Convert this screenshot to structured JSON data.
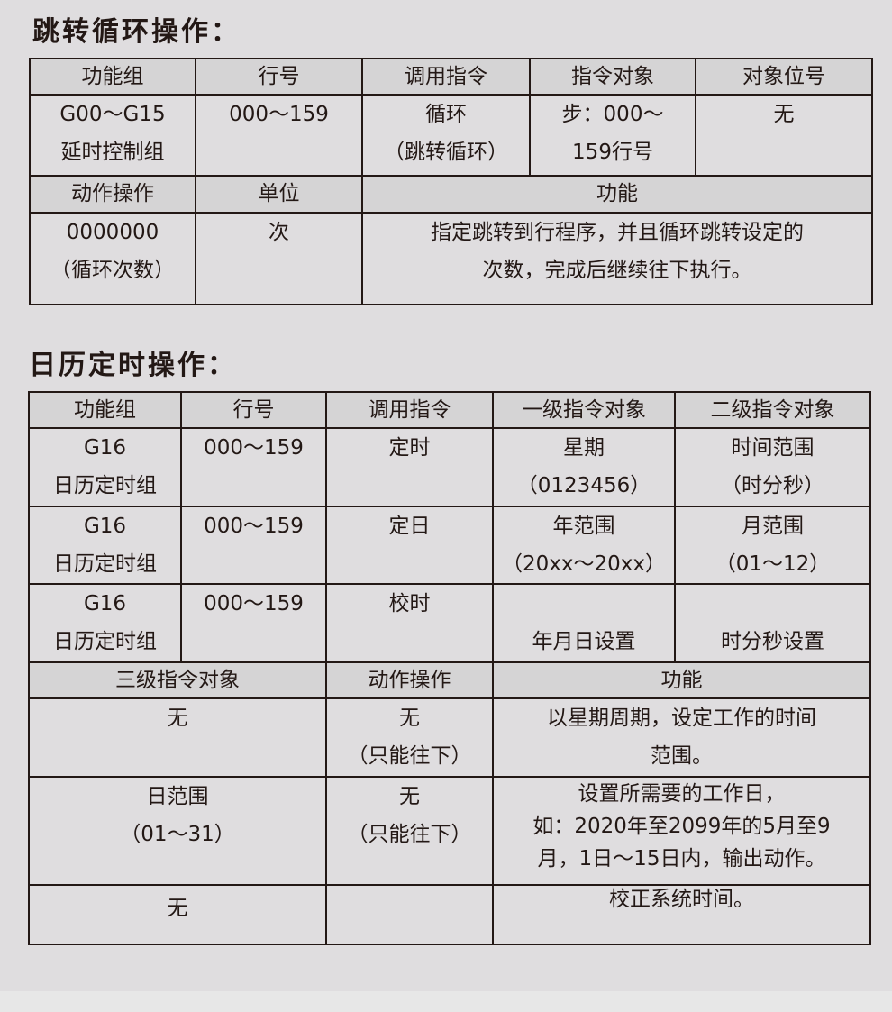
{
  "section1": {
    "title": "跳转循环操作：",
    "headers1": [
      "功能组",
      "行号",
      "调用指令",
      "指令对象",
      "对象位号"
    ],
    "row1": [
      "G00～G15\n延时控制组",
      "000～159",
      "循环\n（跳转循环）",
      "步：000～\n159行号",
      "无"
    ],
    "headers2": [
      "动作操作",
      "单位",
      "功能"
    ],
    "row2": [
      "0000000\n（循环次数）",
      "次",
      "指定跳转到行程序，并且循环跳转设定的\n次数，完成后继续往下执行。"
    ]
  },
  "section2": {
    "title": "日历定时操作：",
    "headers1": [
      "功能组",
      "行号",
      "调用指令",
      "一级指令对象",
      "二级指令对象"
    ],
    "rows1": [
      [
        "G16\n日历定时组",
        "000～159",
        "定时",
        "星期\n（0123456）",
        "时间范围\n（时分秒）"
      ],
      [
        "G16\n日历定时组",
        "000～159",
        "定日",
        "年范围\n（20xx～20xx）",
        "月范围\n（01～12）"
      ],
      [
        "G16\n日历定时组",
        "000～159",
        "校时",
        "\n年月日设置",
        "\n时分秒设置"
      ]
    ],
    "headers2": [
      "三级指令对象",
      "动作操作",
      "功能"
    ],
    "rows2": [
      [
        "无",
        "无\n（只能往下）",
        "以星期周期，设定工作的时间\n范围。"
      ],
      [
        "日范围\n（01～31）",
        "无\n（只能往下）",
        "设置所需要的工作日，\n如：2020年至2099年的5月至9\n月，1日～15日内，输出动作。"
      ],
      [
        "无",
        "",
        "校正系统时间。"
      ]
    ]
  }
}
